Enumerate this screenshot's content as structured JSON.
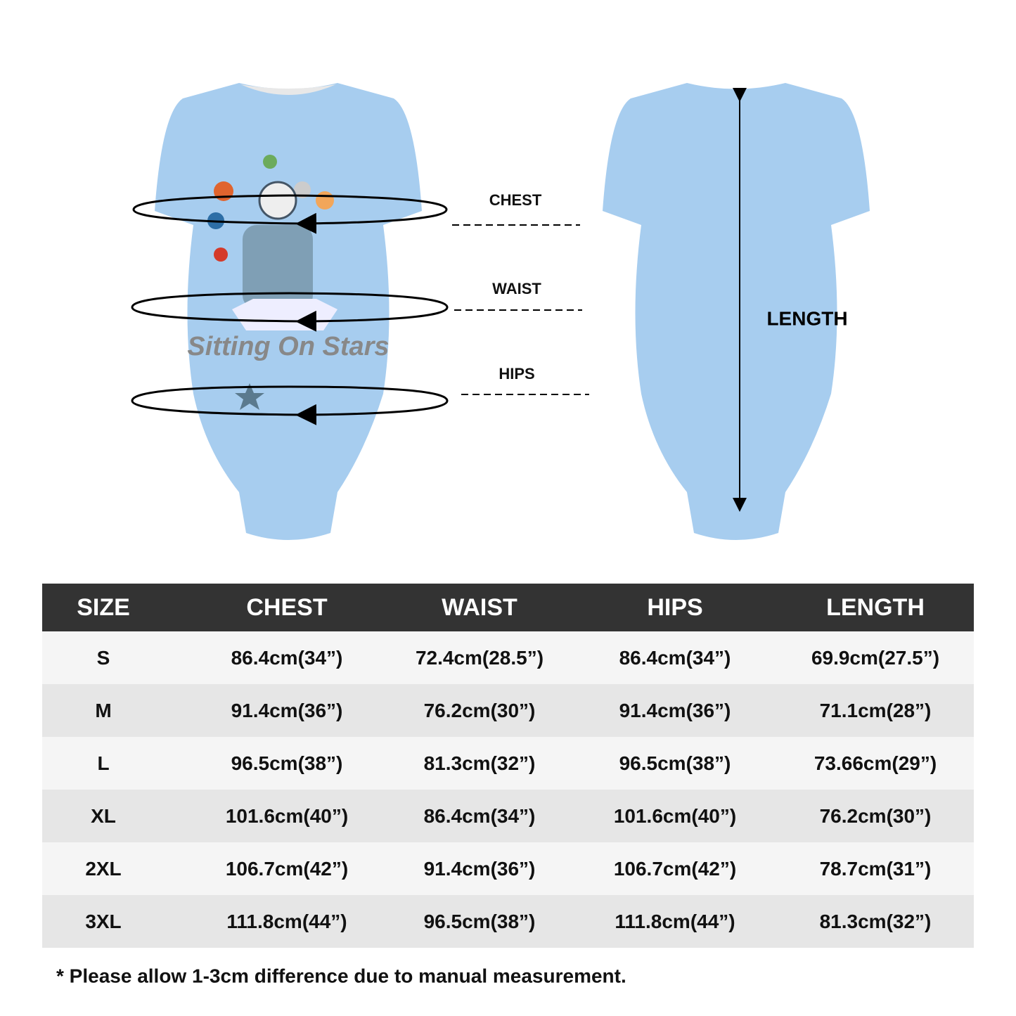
{
  "diagram": {
    "print_text": "Sitting On Stars",
    "labels": {
      "chest": "CHEST",
      "waist": "WAIST",
      "hips": "HIPS",
      "length": "LENGTH"
    }
  },
  "table": {
    "header": [
      "SIZE",
      "CHEST",
      "WAIST",
      "HIPS",
      "LENGTH"
    ],
    "rows": [
      [
        "S",
        "86.4cm(34”)",
        "72.4cm(28.5”)",
        "86.4cm(34”)",
        "69.9cm(27.5”)"
      ],
      [
        "M",
        "91.4cm(36”)",
        "76.2cm(30”)",
        "91.4cm(36”)",
        "71.1cm(28”)"
      ],
      [
        "L",
        "96.5cm(38”)",
        "81.3cm(32”)",
        "96.5cm(38”)",
        "73.66cm(29”)"
      ],
      [
        "XL",
        "101.6cm(40”)",
        "86.4cm(34”)",
        "101.6cm(40”)",
        "76.2cm(30”)"
      ],
      [
        "2XL",
        "106.7cm(42”)",
        "91.4cm(36”)",
        "106.7cm(42”)",
        "78.7cm(31”)"
      ],
      [
        "3XL",
        "111.8cm(44”)",
        "96.5cm(38”)",
        "111.8cm(44”)",
        "81.3cm(32”)"
      ]
    ]
  },
  "footnote": "* Please allow 1-3cm difference due to manual measurement."
}
